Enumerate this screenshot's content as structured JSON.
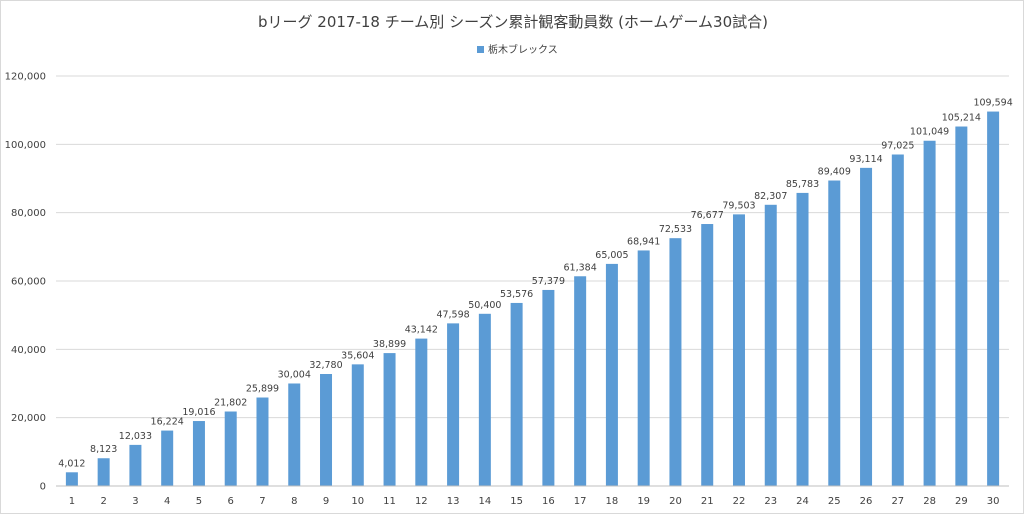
{
  "chart_data": {
    "type": "bar",
    "title": "bリーグ 2017-18 チーム別 シーズン累計観客動員数 (ホームゲーム30試合)",
    "legend_position": "top-center",
    "grid": true,
    "categories": [
      "1",
      "2",
      "3",
      "4",
      "5",
      "6",
      "7",
      "8",
      "9",
      "10",
      "11",
      "12",
      "13",
      "14",
      "15",
      "16",
      "17",
      "18",
      "19",
      "20",
      "21",
      "22",
      "23",
      "24",
      "25",
      "26",
      "27",
      "28",
      "29",
      "30"
    ],
    "series": [
      {
        "name": "栃木ブレックス",
        "color": "#5b9bd5",
        "values": [
          4012,
          8123,
          12033,
          16224,
          19016,
          21802,
          25899,
          30004,
          32780,
          35604,
          38899,
          43142,
          47598,
          50400,
          53576,
          57379,
          61384,
          65005,
          68941,
          72533,
          76677,
          79503,
          82307,
          85783,
          89409,
          93114,
          97025,
          101049,
          105214,
          109594
        ],
        "labels": [
          "4,012",
          "8,123",
          "12,033",
          "16,224",
          "19,016",
          "21,802",
          "25,899",
          "30,004",
          "32,780",
          "35,604",
          "38,899",
          "43,142",
          "47,598",
          "50,400",
          "53,576",
          "57,379",
          "61,384",
          "65,005",
          "68,941",
          "72,533",
          "76,677",
          "79,503",
          "82,307",
          "85,783",
          "89,409",
          "93,114",
          "97,025",
          "101,049",
          "105,214",
          "109,594"
        ]
      }
    ],
    "ylim": [
      0,
      120000
    ],
    "yticks": [
      0,
      20000,
      40000,
      60000,
      80000,
      100000,
      120000
    ],
    "ytick_labels": [
      "0",
      "20,000",
      "40,000",
      "60,000",
      "80,000",
      "100,000",
      "120,000"
    ]
  }
}
